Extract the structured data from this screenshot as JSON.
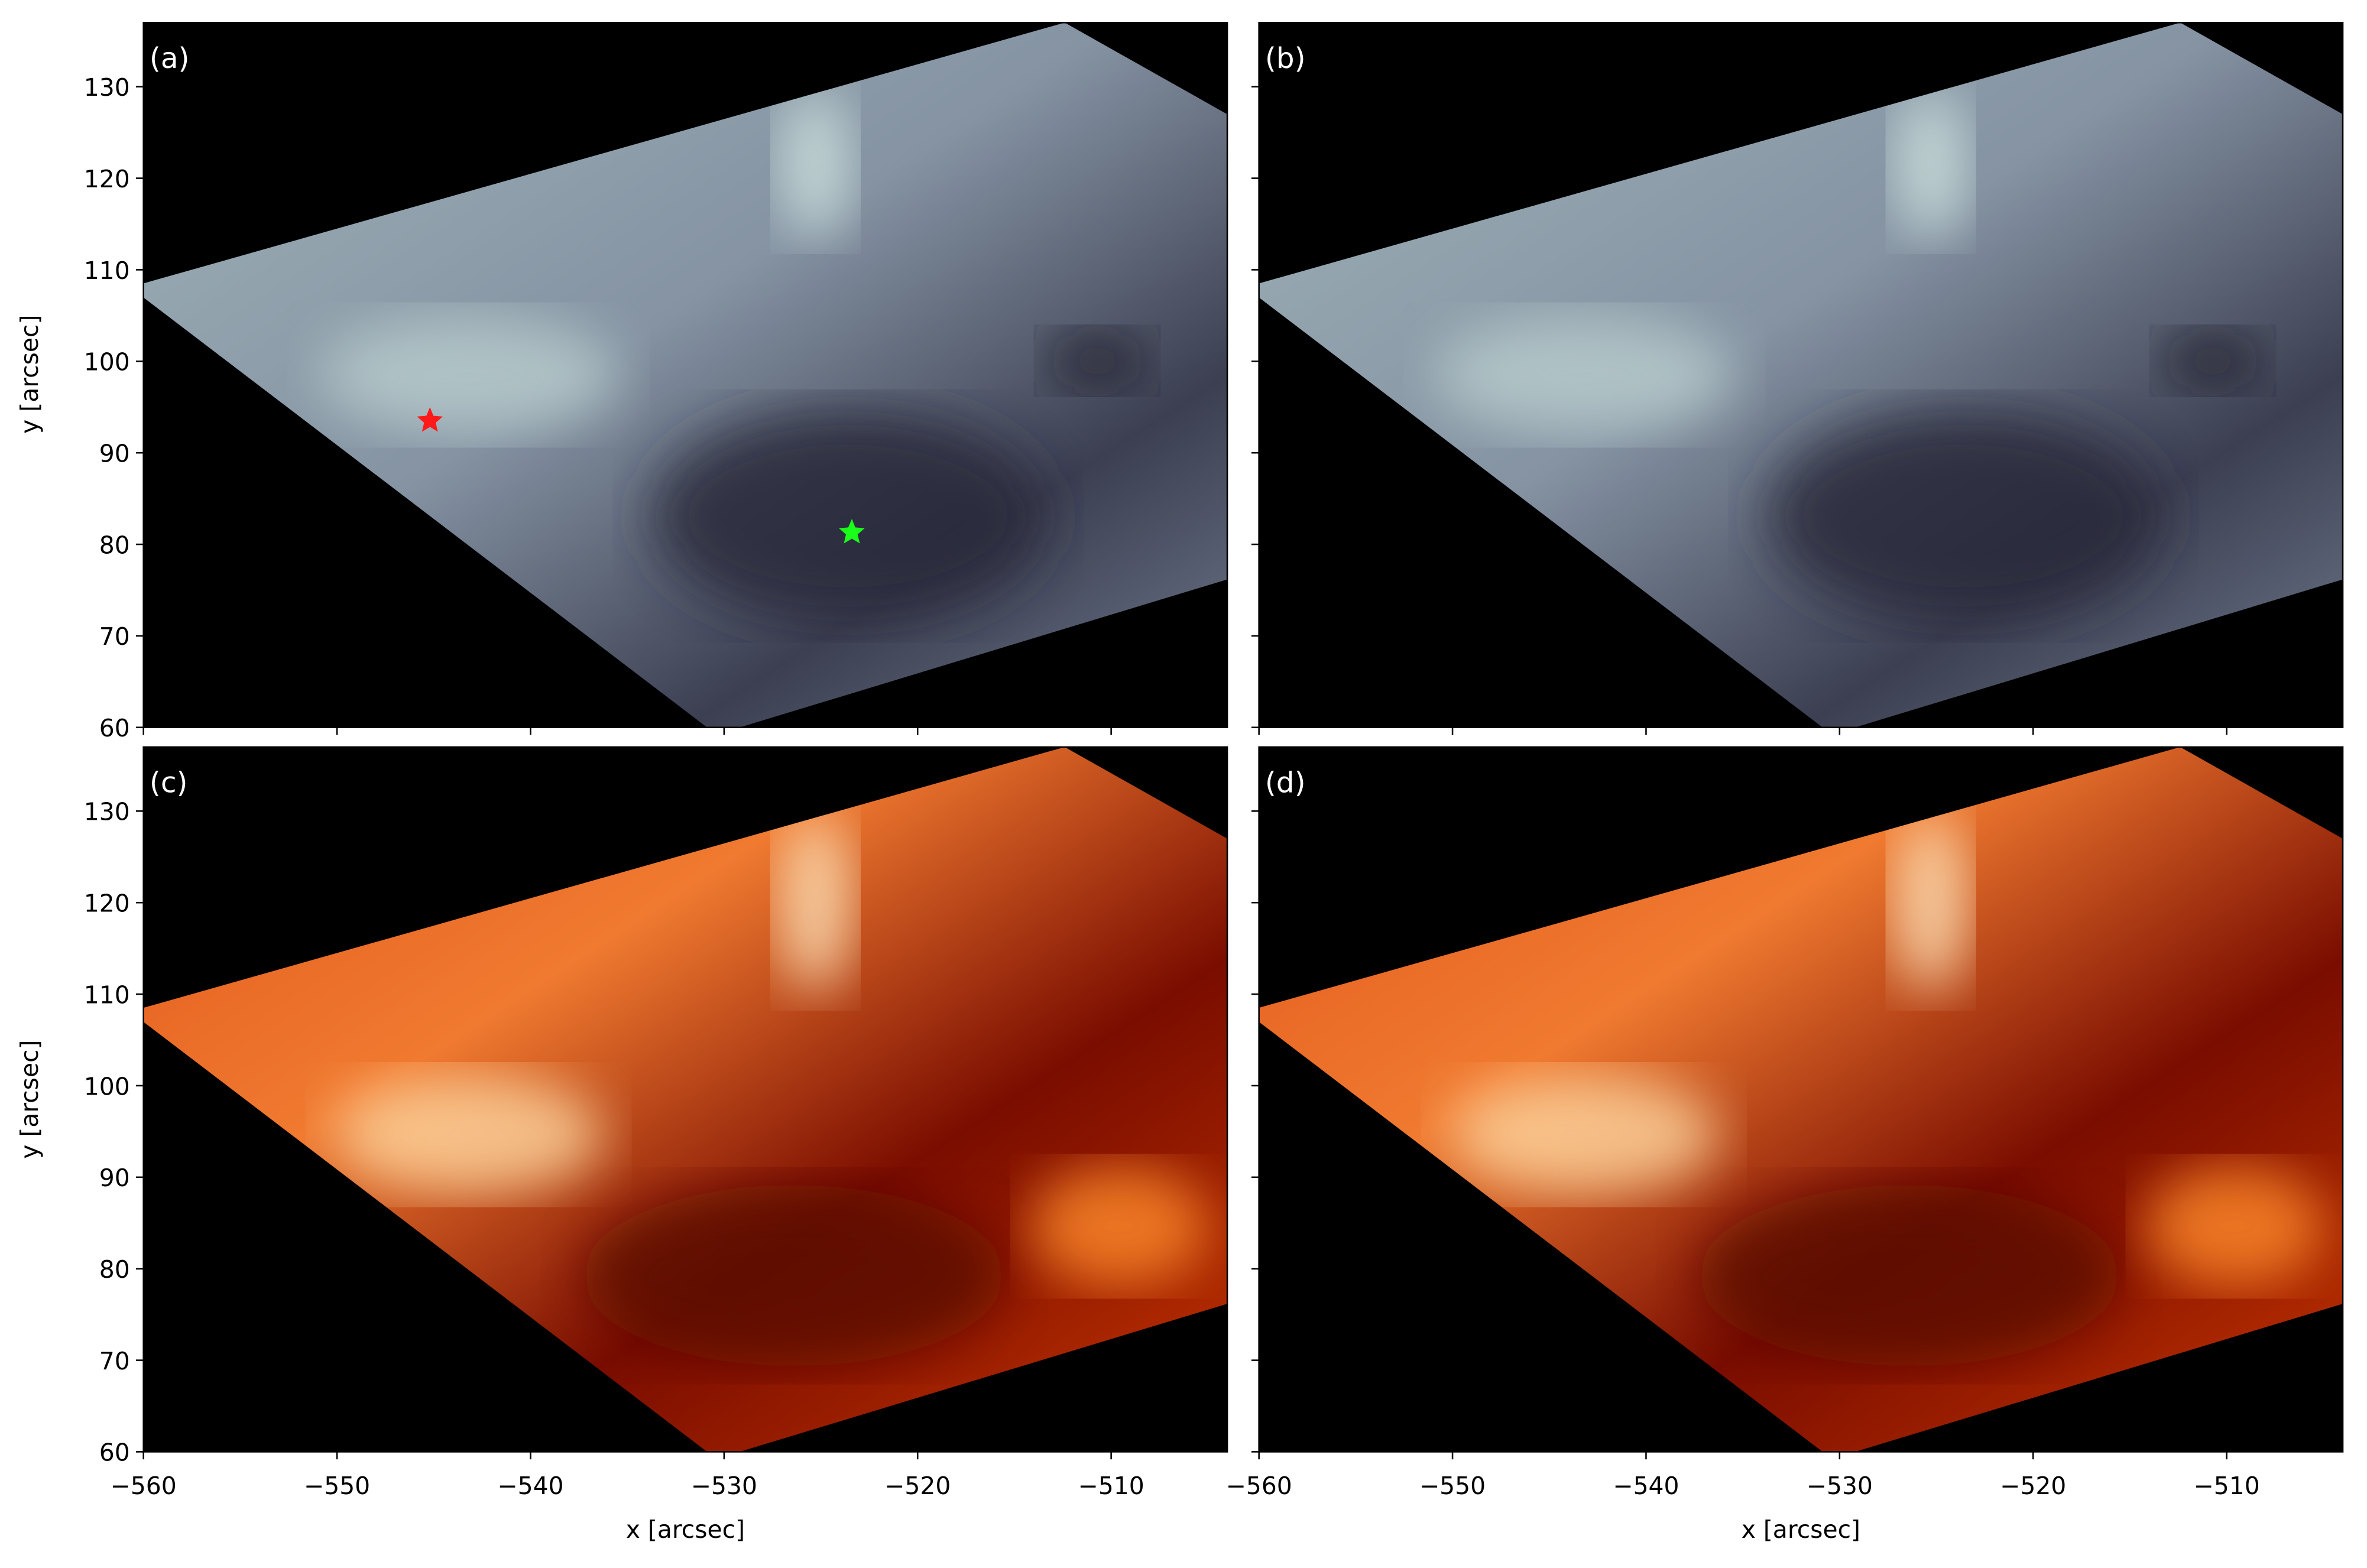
{
  "chart_data": [
    {
      "type": "heatmap",
      "label": "(a)",
      "colormap": "bone",
      "xlim": [
        -560,
        -504
      ],
      "ylim": [
        60,
        137
      ],
      "xticks": [
        -560,
        -550,
        -540,
        -530,
        -520,
        -510
      ],
      "yticks": [
        60,
        70,
        80,
        90,
        100,
        110,
        120,
        130
      ],
      "markers": [
        {
          "x": -545.2,
          "y": 93.5,
          "color": "#ff1a1a"
        },
        {
          "x": -523.4,
          "y": 81.3,
          "color": "#19ff19"
        }
      ]
    },
    {
      "type": "heatmap",
      "label": "(b)",
      "colormap": "bone",
      "xlim": [
        -560,
        -504
      ],
      "ylim": [
        60,
        137
      ],
      "xticks": [
        -560,
        -550,
        -540,
        -530,
        -520,
        -510
      ],
      "yticks": [
        60,
        70,
        80,
        90,
        100,
        110,
        120,
        130
      ]
    },
    {
      "type": "heatmap",
      "label": "(c)",
      "colormap": "gist_heat",
      "xlim": [
        -560,
        -504
      ],
      "ylim": [
        60,
        137
      ],
      "xlabel": "x [arcsec]",
      "ylabel": "y [arcsec]",
      "xticks": [
        {
          "value": -560,
          "label": "−560"
        },
        {
          "value": -550,
          "label": "−550"
        },
        {
          "value": -540,
          "label": "−540"
        },
        {
          "value": -530,
          "label": "−530"
        },
        {
          "value": -520,
          "label": "−520"
        },
        {
          "value": -510,
          "label": "−510"
        }
      ],
      "yticks": [
        60,
        70,
        80,
        90,
        100,
        110,
        120,
        130
      ]
    },
    {
      "type": "heatmap",
      "label": "(d)",
      "colormap": "gist_heat",
      "xlim": [
        -560,
        -504
      ],
      "ylim": [
        60,
        137
      ],
      "xlabel": "x [arcsec]",
      "xticks": [
        {
          "value": -560,
          "label": "−560"
        },
        {
          "value": -550,
          "label": "−550"
        },
        {
          "value": -540,
          "label": "−540"
        },
        {
          "value": -530,
          "label": "−530"
        },
        {
          "value": -520,
          "label": "−520"
        },
        {
          "value": -510,
          "label": "−510"
        }
      ],
      "yticks": [
        60,
        70,
        80,
        90,
        100,
        110,
        120,
        130
      ]
    }
  ],
  "y_label_top": "y [arcsec]"
}
